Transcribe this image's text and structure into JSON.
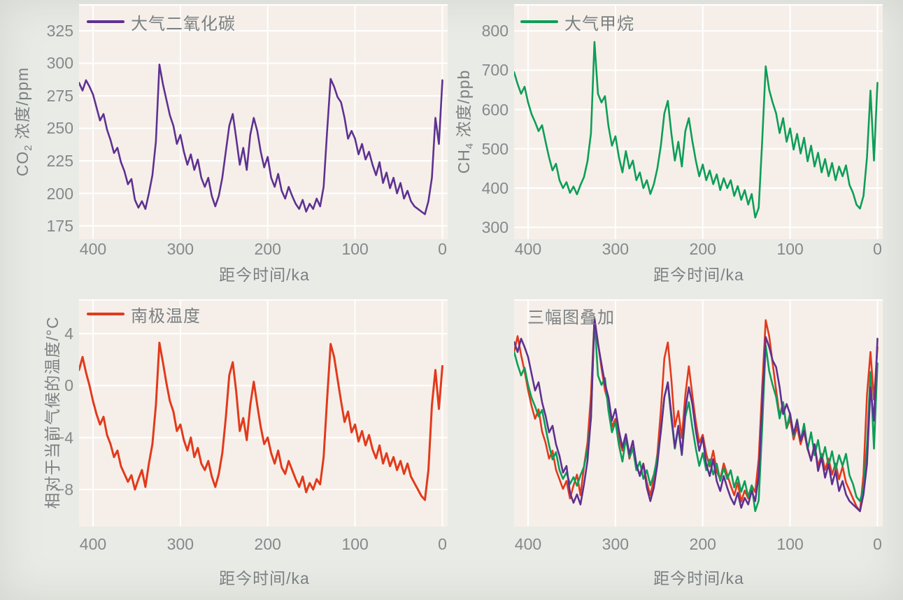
{
  "colors": {
    "page_bg": "#e9ebe6",
    "panel_bg": "#f6efe9",
    "grid": "#ffffff",
    "tick_text": "#85898b",
    "label_text": "#7b8082",
    "co2_purple": "#5e3192",
    "ch4_green": "#0d9e58",
    "temp_red": "#e23a1c"
  },
  "chart_data": {
    "type": "line",
    "xlabel": "距今时间/ka",
    "x_ka": [
      416,
      412,
      408,
      404,
      400,
      396,
      392,
      388,
      384,
      380,
      376,
      372,
      368,
      364,
      360,
      356,
      352,
      348,
      344,
      340,
      336,
      332,
      328,
      324,
      320,
      316,
      312,
      308,
      304,
      300,
      296,
      292,
      288,
      284,
      280,
      276,
      272,
      268,
      264,
      260,
      256,
      252,
      248,
      244,
      240,
      236,
      232,
      228,
      224,
      220,
      216,
      212,
      208,
      204,
      200,
      196,
      192,
      188,
      184,
      180,
      176,
      172,
      168,
      164,
      160,
      156,
      152,
      148,
      144,
      140,
      136,
      132,
      128,
      124,
      120,
      116,
      112,
      108,
      104,
      100,
      96,
      92,
      88,
      84,
      80,
      76,
      72,
      68,
      64,
      60,
      56,
      52,
      48,
      44,
      40,
      36,
      32,
      28,
      24,
      20,
      16,
      12,
      8,
      4,
      0
    ],
    "series": {
      "co2": {
        "name": "大气二氧化碳",
        "unit": "ppm",
        "color": "#5e3192",
        "values": [
          285,
          279,
          287,
          282,
          276,
          266,
          256,
          261,
          249,
          241,
          231,
          235,
          224,
          217,
          207,
          211,
          195,
          189,
          194,
          188,
          200,
          214,
          240,
          299,
          284,
          272,
          260,
          252,
          238,
          245,
          232,
          222,
          230,
          218,
          226,
          212,
          205,
          212,
          198,
          190,
          198,
          212,
          232,
          252,
          261,
          242,
          222,
          235,
          218,
          245,
          258,
          248,
          232,
          220,
          228,
          212,
          205,
          215,
          202,
          196,
          205,
          198,
          192,
          188,
          195,
          186,
          192,
          188,
          196,
          190,
          205,
          248,
          288,
          282,
          274,
          270,
          258,
          242,
          248,
          242,
          230,
          238,
          226,
          232,
          222,
          214,
          224,
          208,
          216,
          204,
          212,
          200,
          208,
          196,
          202,
          194,
          190,
          188,
          186,
          184,
          194,
          212,
          258,
          238,
          287
        ]
      },
      "ch4": {
        "name": "大气甲烷",
        "unit": "ppb",
        "color": "#0d9e58",
        "values": [
          695,
          665,
          640,
          658,
          618,
          588,
          568,
          545,
          560,
          518,
          478,
          445,
          462,
          420,
          400,
          415,
          388,
          404,
          384,
          408,
          428,
          468,
          540,
          772,
          640,
          618,
          634,
          558,
          508,
          532,
          478,
          440,
          494,
          450,
          470,
          420,
          440,
          400,
          420,
          385,
          410,
          450,
          508,
          590,
          622,
          540,
          470,
          518,
          455,
          545,
          578,
          520,
          470,
          430,
          460,
          420,
          445,
          410,
          435,
          395,
          425,
          400,
          420,
          380,
          405,
          370,
          395,
          358,
          385,
          325,
          350,
          520,
          710,
          650,
          618,
          590,
          540,
          578,
          518,
          552,
          498,
          538,
          488,
          528,
          468,
          508,
          455,
          490,
          440,
          474,
          430,
          464,
          420,
          455,
          430,
          458,
          408,
          388,
          358,
          348,
          380,
          478,
          648,
          470,
          668
        ]
      },
      "temp": {
        "name": "南极温度",
        "unit": "°C",
        "color": "#e23a1c",
        "values": [
          1.2,
          2.2,
          1.0,
          0.0,
          -1.2,
          -2.2,
          -3.0,
          -2.4,
          -3.8,
          -4.5,
          -5.5,
          -5.0,
          -6.2,
          -6.8,
          -7.4,
          -6.9,
          -8.0,
          -7.2,
          -6.5,
          -7.8,
          -6.0,
          -4.5,
          -1.5,
          3.3,
          1.8,
          0.2,
          -1.2,
          -2.0,
          -3.5,
          -3.0,
          -4.2,
          -5.0,
          -4.0,
          -5.5,
          -4.8,
          -6.0,
          -6.5,
          -5.8,
          -7.0,
          -7.8,
          -6.8,
          -5.2,
          -2.5,
          0.8,
          1.8,
          -0.5,
          -3.5,
          -2.5,
          -4.2,
          -1.5,
          0.3,
          -1.5,
          -3.2,
          -4.5,
          -4.0,
          -5.2,
          -6.0,
          -5.0,
          -6.3,
          -6.8,
          -5.8,
          -6.5,
          -7.2,
          -7.8,
          -7.0,
          -8.2,
          -7.5,
          -8.0,
          -7.2,
          -7.6,
          -5.5,
          -1.0,
          3.2,
          2.2,
          0.5,
          -1.2,
          -2.8,
          -2.0,
          -3.6,
          -3.0,
          -4.3,
          -3.5,
          -4.6,
          -3.8,
          -4.9,
          -5.6,
          -4.6,
          -6.0,
          -5.2,
          -6.2,
          -5.5,
          -6.5,
          -5.8,
          -6.8,
          -6.0,
          -7.0,
          -7.5,
          -8.0,
          -8.5,
          -8.8,
          -6.5,
          -1.5,
          1.2,
          -1.8,
          1.5
        ]
      }
    },
    "charts": [
      {
        "id": "co2",
        "legend": "大气二氧化碳",
        "series": [
          "co2"
        ],
        "swatch_series": "co2",
        "ylabel_base": "CO",
        "ylabel_sub": "2",
        "ylabel_rest": " 浓度/ppm",
        "xlabel": "距今时间/ka",
        "ytick_vals": [
          325,
          300,
          275,
          250,
          225,
          200,
          175
        ],
        "ytick_labels": [
          "325",
          "300",
          "275",
          "250",
          "225",
          "200",
          "175"
        ],
        "xtick_vals": [
          400,
          300,
          200,
          100,
          0
        ],
        "xtick_labels": [
          "400",
          "300",
          "200",
          "100",
          "0"
        ],
        "xlim": [
          416,
          -6
        ],
        "ylim": [
          164.8,
          345.4
        ],
        "stroke": 2.6,
        "normalized": false,
        "grid": true
      },
      {
        "id": "ch4",
        "legend": "大气甲烷",
        "series": [
          "ch4"
        ],
        "swatch_series": "ch4",
        "ylabel_base": "CH",
        "ylabel_sub": "4",
        "ylabel_rest": " 浓度/ppb",
        "xlabel": "距今时间/ka",
        "ytick_vals": [
          800,
          700,
          600,
          500,
          400,
          300
        ],
        "ytick_labels": [
          "800",
          "700",
          "600",
          "500",
          "400",
          "300"
        ],
        "xtick_vals": [
          400,
          300,
          200,
          100,
          0
        ],
        "xtick_labels": [
          "400",
          "300",
          "200",
          "100",
          "0"
        ],
        "xlim": [
          416,
          -6
        ],
        "ylim": [
          270,
          868
        ],
        "stroke": 2.6,
        "normalized": false,
        "grid": true
      },
      {
        "id": "temp",
        "legend": "南极温度",
        "series": [
          "temp"
        ],
        "swatch_series": "temp",
        "ylabel_base": "相对于当前气候的温度/°C",
        "ylabel_sub": "",
        "ylabel_rest": "",
        "xlabel": "距今时间/ka",
        "ytick_vals": [
          4,
          0,
          -4,
          -8
        ],
        "ytick_labels": [
          "4",
          "0",
          "−4",
          "−8"
        ],
        "xtick_vals": [
          400,
          300,
          200,
          100,
          0
        ],
        "xtick_labels": [
          "400",
          "300",
          "200",
          "100",
          "0"
        ],
        "xlim": [
          416,
          -6
        ],
        "ylim": [
          -10.85,
          6.64
        ],
        "stroke": 3,
        "normalized": false,
        "grid": true
      },
      {
        "id": "overlay",
        "legend": "三幅图叠加",
        "series": [
          "temp",
          "ch4",
          "co2"
        ],
        "swatch_series": "",
        "ylabel_base": "",
        "ylabel_sub": "",
        "ylabel_rest": "",
        "xlabel": "距今时间/ka",
        "ytick_vals": [],
        "ytick_labels": [],
        "xtick_vals": [
          400,
          300,
          200,
          100,
          0
        ],
        "xtick_labels": [
          "400",
          "300",
          "200",
          "100",
          "0"
        ],
        "xlim": [
          416,
          -6
        ],
        "ylim": [
          -0.08,
          1.1
        ],
        "stroke": 2.6,
        "normalized": true,
        "grid": true
      }
    ]
  }
}
